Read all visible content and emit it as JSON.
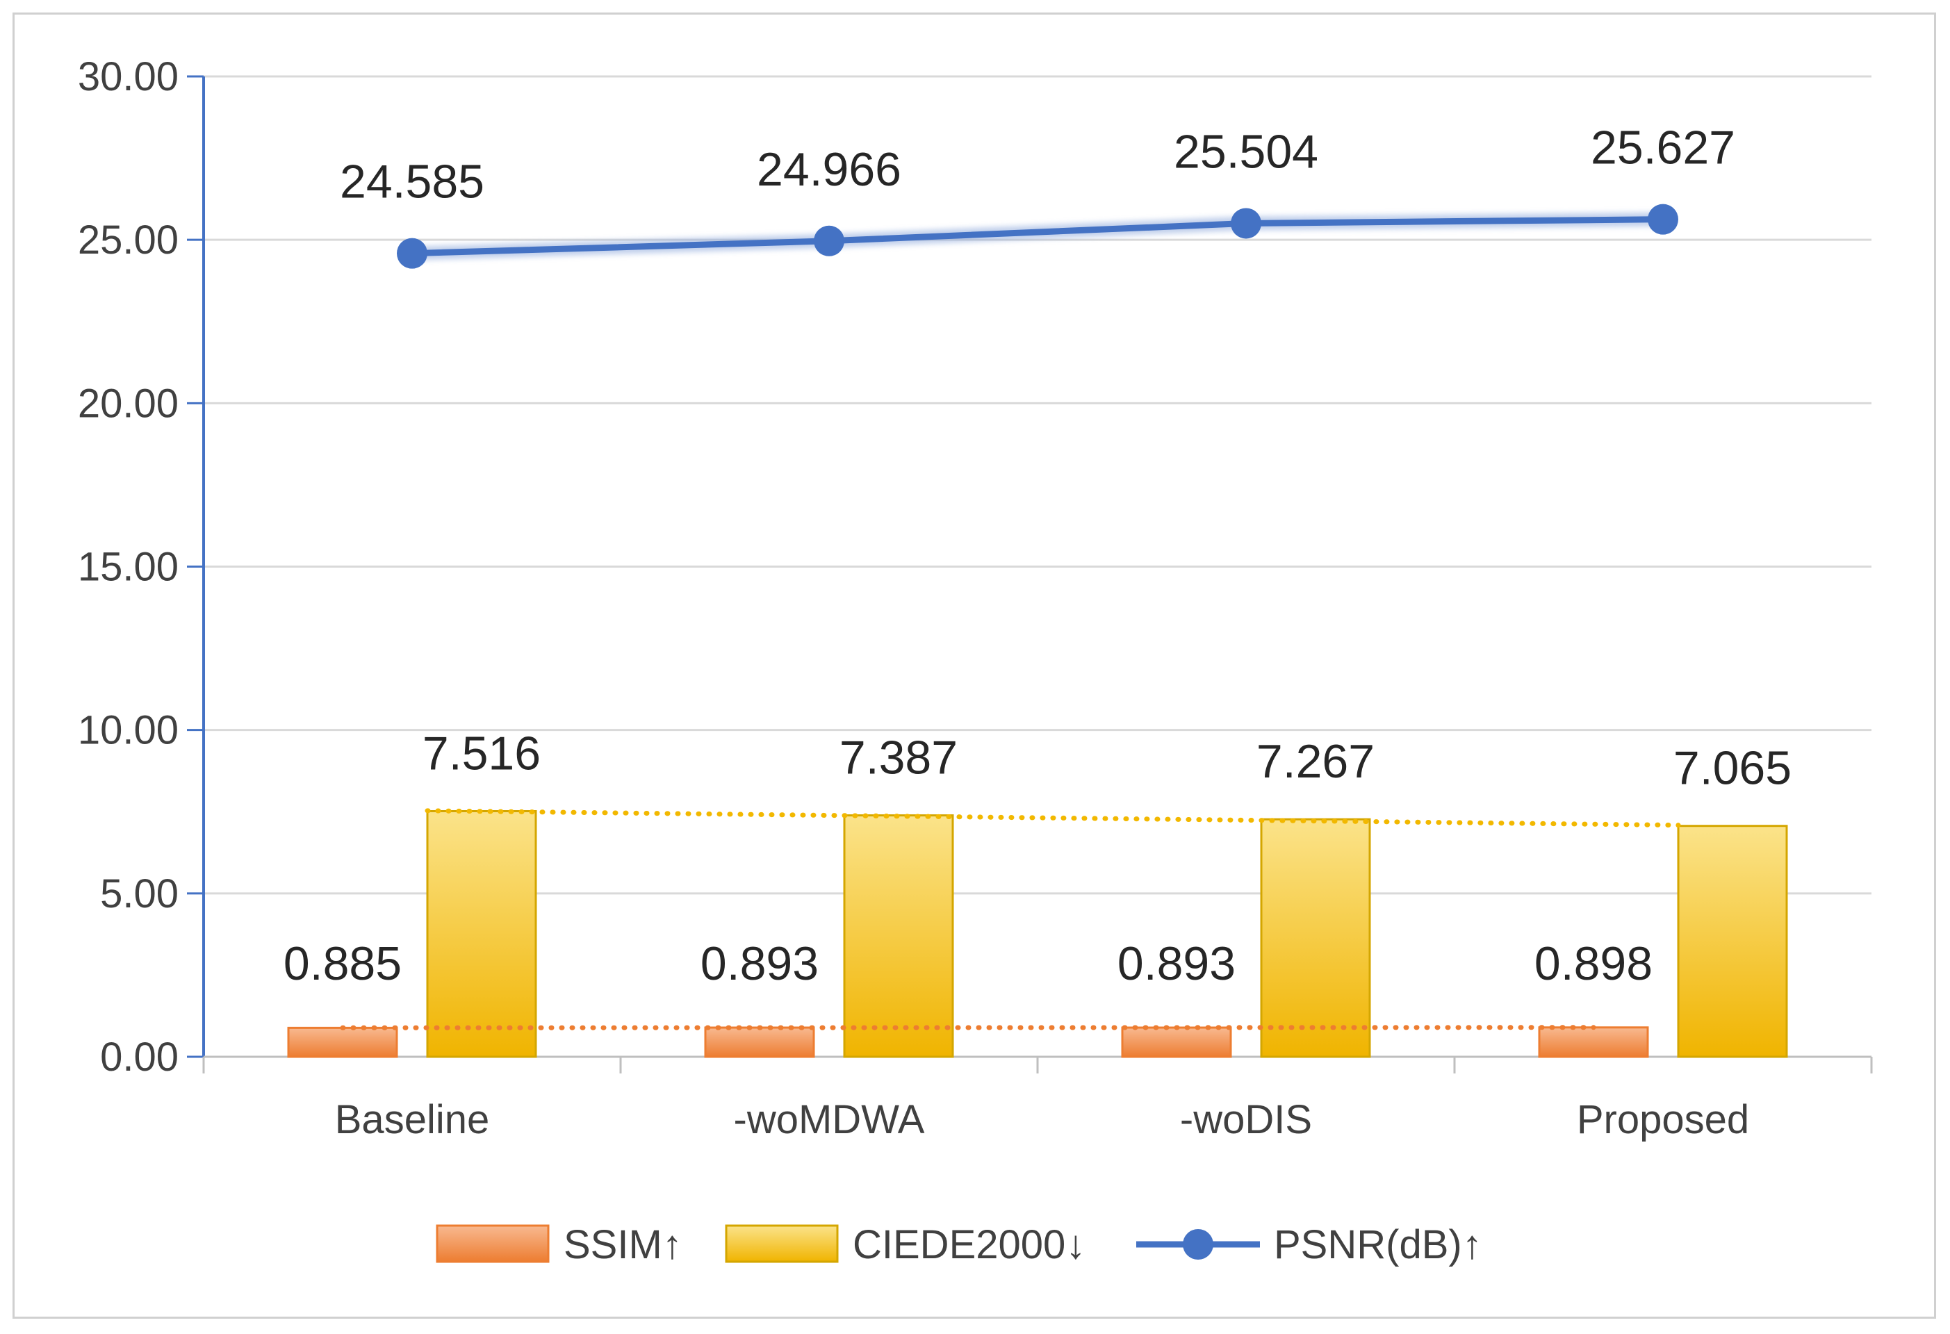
{
  "chart_data": {
    "type": "bar",
    "categories": [
      "Baseline",
      "-woMDWA",
      "-woDIS",
      "Proposed"
    ],
    "series": [
      {
        "name": "SSIM↑",
        "kind": "bar",
        "values": [
          0.885,
          0.893,
          0.893,
          0.898
        ],
        "labels": [
          "0.885",
          "0.893",
          "0.893",
          "0.898"
        ],
        "color": "#ED7D31",
        "trendline": "dotted"
      },
      {
        "name": "CIEDE2000↓",
        "kind": "bar",
        "values": [
          7.516,
          7.387,
          7.267,
          7.065
        ],
        "labels": [
          "7.516",
          "7.387",
          "7.267",
          "7.065"
        ],
        "color": "#F2B800",
        "trendline": "dotted"
      },
      {
        "name": "PSNR(dB)↑",
        "kind": "line",
        "values": [
          24.585,
          24.966,
          25.504,
          25.627
        ],
        "labels": [
          "24.585",
          "24.966",
          "25.504",
          "25.627"
        ],
        "color": "#4472C4"
      }
    ],
    "ylim": [
      0,
      30
    ],
    "yticks": [
      "0.00",
      "5.00",
      "10.00",
      "15.00",
      "20.00",
      "25.00",
      "30.00"
    ],
    "grid": true,
    "legend": "bottom",
    "title": "",
    "xlabel": "",
    "ylabel": ""
  }
}
